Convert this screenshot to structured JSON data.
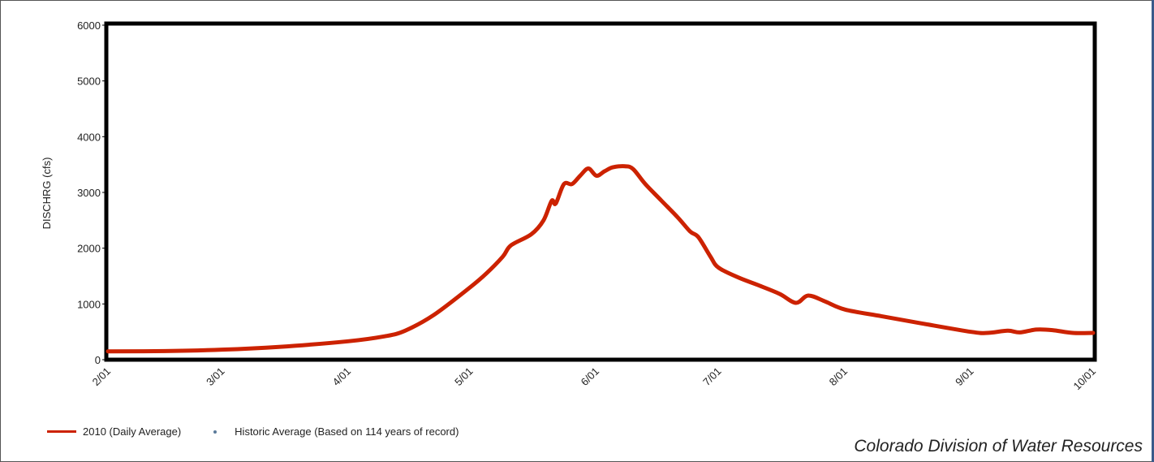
{
  "chart_data": {
    "type": "line",
    "title": "",
    "ylabel": "DISCHRG (cfs)",
    "xlabel": "",
    "ylim": [
      0,
      6000
    ],
    "yticks": [
      0,
      1000,
      2000,
      3000,
      4000,
      5000,
      6000
    ],
    "xticks": [
      "2/01",
      "3/01",
      "4/01",
      "5/01",
      "6/01",
      "7/01",
      "8/01",
      "9/01",
      "10/01"
    ],
    "x_range": [
      "2/01",
      "10/01"
    ],
    "legend_position": "bottom-left",
    "series": [
      {
        "name": "2010 (Daily Average)",
        "color": "#cc2200",
        "points": [
          [
            "2/01",
            150
          ],
          [
            "2/15",
            155
          ],
          [
            "3/01",
            180
          ],
          [
            "3/15",
            230
          ],
          [
            "4/01",
            330
          ],
          [
            "4/10",
            420
          ],
          [
            "4/15",
            520
          ],
          [
            "4/22",
            800
          ],
          [
            "5/01",
            1300
          ],
          [
            "5/05",
            1550
          ],
          [
            "5/09",
            1850
          ],
          [
            "5/11",
            2050
          ],
          [
            "5/16",
            2250
          ],
          [
            "5/19",
            2500
          ],
          [
            "5/21",
            2850
          ],
          [
            "5/22",
            2800
          ],
          [
            "5/24",
            3150
          ],
          [
            "5/26",
            3150
          ],
          [
            "5/28",
            3300
          ],
          [
            "5/30",
            3430
          ],
          [
            "6/01",
            3300
          ],
          [
            "6/03",
            3380
          ],
          [
            "6/05",
            3450
          ],
          [
            "6/08",
            3470
          ],
          [
            "6/10",
            3420
          ],
          [
            "6/13",
            3150
          ],
          [
            "6/17",
            2850
          ],
          [
            "6/21",
            2550
          ],
          [
            "6/24",
            2300
          ],
          [
            "6/26",
            2200
          ],
          [
            "6/29",
            1850
          ],
          [
            "7/01",
            1650
          ],
          [
            "7/06",
            1470
          ],
          [
            "7/11",
            1330
          ],
          [
            "7/16",
            1180
          ],
          [
            "7/20",
            1020
          ],
          [
            "7/23",
            1150
          ],
          [
            "7/27",
            1050
          ],
          [
            "8/01",
            900
          ],
          [
            "8/10",
            780
          ],
          [
            "8/20",
            650
          ],
          [
            "9/01",
            500
          ],
          [
            "9/05",
            480
          ],
          [
            "9/10",
            520
          ],
          [
            "9/13",
            490
          ],
          [
            "9/17",
            540
          ],
          [
            "9/21",
            530
          ],
          [
            "9/26",
            480
          ],
          [
            "10/01",
            480
          ]
        ]
      },
      {
        "name": "Historic Average (Based on 114 years of record)",
        "color": "#5a7a9a",
        "points": []
      }
    ]
  },
  "credit": "Colorado Division of Water Resources"
}
